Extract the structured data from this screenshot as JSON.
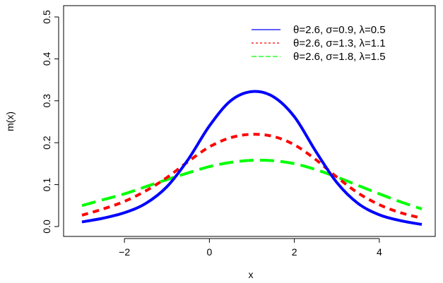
{
  "chart_data": {
    "type": "line",
    "title": "",
    "xlabel": "x",
    "ylabel": "m(x)",
    "xlim": [
      -3.1,
      5.1
    ],
    "ylim": [
      0,
      0.5
    ],
    "xticks": [
      -2,
      0,
      2,
      4
    ],
    "xtick_labels": [
      "−2",
      "0",
      "2",
      "4"
    ],
    "yticks": [
      0.0,
      0.1,
      0.2,
      0.3,
      0.4,
      0.5
    ],
    "ytick_labels": [
      "0.0",
      "0.1",
      "0.2",
      "0.3",
      "0.4",
      "0.5"
    ],
    "grid": false,
    "legend_position": "top-right",
    "x": [
      -3.0,
      -2.5,
      -2.0,
      -1.5,
      -1.0,
      -0.5,
      0.0,
      0.5,
      1.0,
      1.5,
      2.0,
      2.5,
      3.0,
      3.5,
      4.0,
      4.5,
      5.0
    ],
    "series": [
      {
        "name": "θ=2.6, σ=0.9, λ=0.5",
        "color": "#0000ff",
        "style": "solid",
        "values": [
          0.011,
          0.02,
          0.033,
          0.055,
          0.095,
          0.16,
          0.24,
          0.3,
          0.322,
          0.31,
          0.262,
          0.18,
          0.105,
          0.055,
          0.028,
          0.014,
          0.005
        ]
      },
      {
        "name": "θ=2.6, σ=1.3, λ=1.1",
        "color": "#ff0000",
        "style": "dashed",
        "values": [
          0.027,
          0.042,
          0.06,
          0.085,
          0.117,
          0.155,
          0.19,
          0.212,
          0.22,
          0.215,
          0.195,
          0.16,
          0.118,
          0.08,
          0.052,
          0.033,
          0.02
        ]
      },
      {
        "name": "θ=2.6, σ=1.8, λ=1.5",
        "color": "#00ff00",
        "style": "longdash",
        "values": [
          0.05,
          0.064,
          0.078,
          0.095,
          0.112,
          0.128,
          0.143,
          0.153,
          0.158,
          0.157,
          0.15,
          0.136,
          0.118,
          0.098,
          0.078,
          0.059,
          0.042
        ]
      }
    ]
  }
}
